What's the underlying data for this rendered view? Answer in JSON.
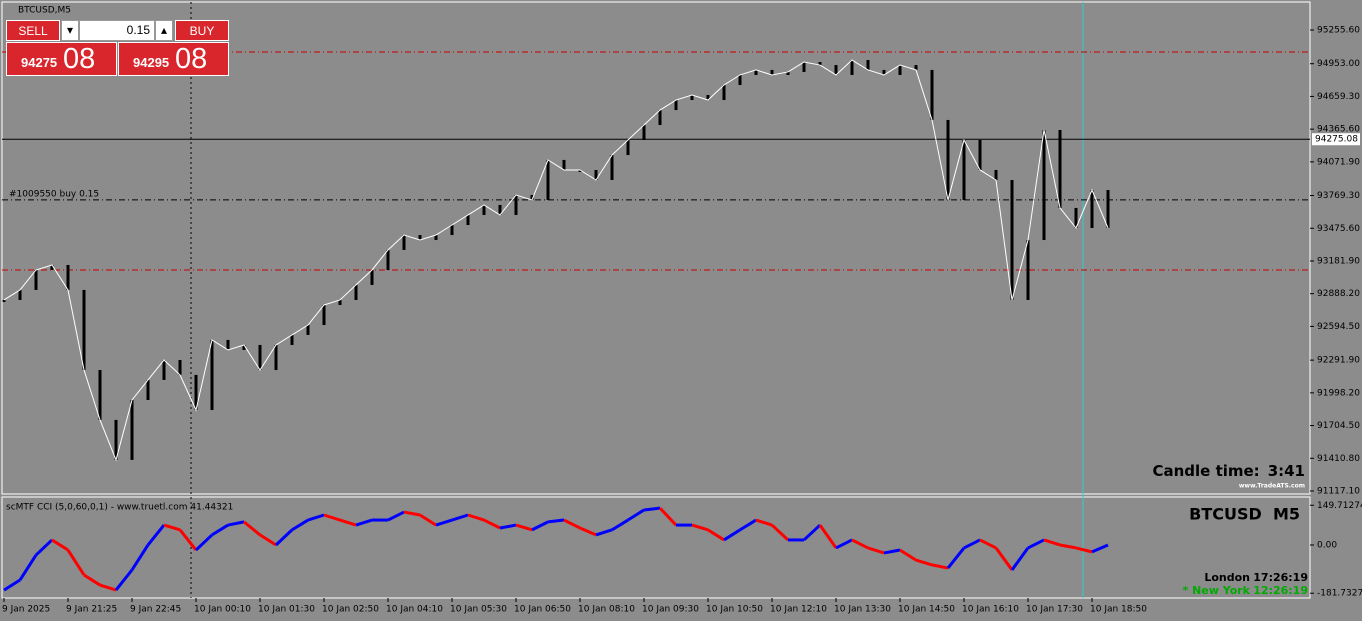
{
  "window": {
    "title": "BTCUSD,M5"
  },
  "trade_panel": {
    "sell": "SELL",
    "buy": "BUY",
    "lot": "0.15",
    "bid_small": "94275",
    "bid_large": "08",
    "ask_small": "94295",
    "ask_large": "08"
  },
  "chart_data": {
    "type": "candlestick",
    "categories": [
      "9 Jan 2025",
      null,
      null,
      null,
      "9 Jan 21:25",
      null,
      null,
      null,
      "9 Jan 22:45",
      null,
      null,
      null,
      "10 Jan 00:10",
      null,
      null,
      null,
      "10 Jan 01:30",
      null,
      null,
      null,
      "10 Jan 02:50",
      null,
      null,
      null,
      "10 Jan 04:10",
      null,
      null,
      null,
      "10 Jan 05:30",
      null,
      null,
      null,
      "10 Jan 06:50",
      null,
      null,
      null,
      "10 Jan 08:10",
      null,
      null,
      null,
      "10 Jan 09:30",
      null,
      null,
      null,
      "10 Jan 10:50",
      null,
      null,
      null,
      "10 Jan 12:10",
      null,
      null,
      null,
      "10 Jan 13:30",
      null,
      null,
      null,
      "10 Jan 14:50",
      null,
      null,
      null,
      "10 Jan 16:10",
      null,
      null,
      null,
      "10 Jan 17:30",
      null,
      null,
      null,
      "10 Jan 18:50",
      null
    ],
    "values": [
      92832,
      92922,
      93101,
      93146,
      92922,
      92203,
      91755,
      91396,
      91934,
      92114,
      92293,
      92159,
      91844,
      92473,
      92383,
      92428,
      92203,
      92428,
      92518,
      92607,
      92787,
      92832,
      92967,
      93101,
      93281,
      93415,
      93370,
      93415,
      93505,
      93595,
      93685,
      93595,
      93774,
      93730,
      94089,
      93999,
      93999,
      93909,
      94133,
      94268,
      94403,
      94537,
      94627,
      94672,
      94627,
      94762,
      94852,
      94897,
      94852,
      94879,
      94968,
      94941,
      94852,
      94986,
      94897,
      94852,
      94941,
      94897,
      94448,
      93730,
      94268,
      93999,
      93909,
      92832,
      93370,
      94358,
      93658,
      93478,
      93819,
      93478
    ],
    "color": "#000000",
    "ylim": [
      91090,
      95507
    ],
    "yticks": [
      {
        "value": 95255.6,
        "label": "95255.60"
      },
      {
        "value": 94953,
        "label": "94953.00"
      },
      {
        "value": 94659.3,
        "label": "94659.30"
      },
      {
        "value": 94365.6,
        "label": "94365.60"
      },
      {
        "value": 94071.9,
        "label": "94071.90"
      },
      {
        "value": 93769.3,
        "label": "93769.30"
      },
      {
        "value": 93475.6,
        "label": "93475.60"
      },
      {
        "value": 93181.9,
        "label": "93181.90"
      },
      {
        "value": 92888.2,
        "label": "92888.20"
      },
      {
        "value": 92594.5,
        "label": "92594.50"
      },
      {
        "value": 92291.9,
        "label": "92291.90"
      },
      {
        "value": 91998.2,
        "label": "91998.20"
      },
      {
        "value": 91704.5,
        "label": "91704.50"
      },
      {
        "value": 91410.8,
        "label": "91410.80"
      },
      {
        "value": 91117.1,
        "label": "91117.10"
      }
    ],
    "current_price": {
      "value": 94275.08,
      "label": "94275.08"
    },
    "order_line": {
      "value": 93730,
      "label": "#1009550 buy 0.15"
    },
    "stop_levels": [
      95058,
      93101
    ],
    "stop_color": "#cc0000"
  },
  "indicator": {
    "title": "scMTF CCI (5,0,60,0,1) - www.truetl.com 41.44321",
    "values": [
      -170,
      -132,
      -38,
      19,
      -19,
      -113,
      -151,
      -170,
      -94,
      0,
      75,
      57,
      -19,
      38,
      75,
      87,
      38,
      0,
      57,
      94,
      113,
      94,
      75,
      94,
      94,
      124,
      113,
      75,
      94,
      113,
      94,
      64,
      75,
      57,
      87,
      94,
      64,
      38,
      57,
      94,
      132,
      139,
      75,
      75,
      57,
      19,
      57,
      94,
      75,
      19,
      19,
      75,
      -11,
      19,
      -11,
      -30,
      -19,
      -57,
      -75,
      -87,
      -11,
      19,
      -11,
      -94,
      -11,
      19,
      0,
      -11,
      -26,
      0
    ],
    "rise_color": "#0000ff",
    "fall_color": "#ff0000",
    "ylim": [
      -199.7,
      180.8
    ],
    "yticks": [
      {
        "value": 149.71274,
        "label": "149.71274"
      },
      {
        "value": 0,
        "label": "0.00"
      },
      {
        "value": -181.7327,
        "label": "-181.7327"
      }
    ]
  },
  "overlay": {
    "candle_label": "Candle time:",
    "candle_time": "3:41",
    "site": "www.TradeATS.com",
    "symbol": "BTCUSD  M5",
    "city1": "London",
    "time1": "17:26:19",
    "city2": "* New York",
    "time2": "12:26:19"
  }
}
